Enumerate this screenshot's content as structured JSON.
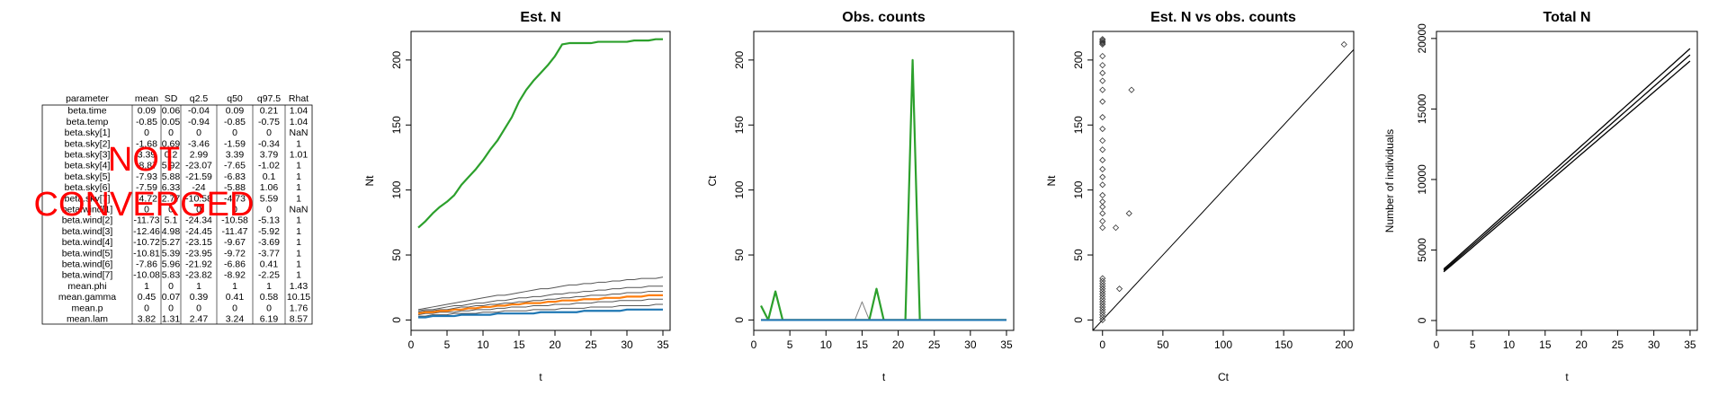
{
  "summary_table": {
    "columns": [
      "parameter",
      "mean",
      "SD",
      "q2.5",
      "q50",
      "q97.5",
      "Rhat"
    ],
    "rows": [
      [
        "beta.time",
        "0.09",
        "0.06",
        "-0.04",
        "0.09",
        "0.21",
        "1.04"
      ],
      [
        "beta.temp",
        "-0.85",
        "0.05",
        "-0.94",
        "-0.85",
        "-0.75",
        "1.04"
      ],
      [
        "beta.sky[1]",
        "0",
        "0",
        "0",
        "0",
        "0",
        "NaN"
      ],
      [
        "beta.sky[2]",
        "-1.68",
        "0.69",
        "-3.46",
        "-1.59",
        "-0.34",
        "1"
      ],
      [
        "beta.sky[3]",
        "3.39",
        "0.2",
        "2.99",
        "3.39",
        "3.79",
        "1.01"
      ],
      [
        "beta.sky[4]",
        "-8.87",
        "5.92",
        "-23.07",
        "-7.65",
        "-1.02",
        "1"
      ],
      [
        "beta.sky[5]",
        "-7.93",
        "5.88",
        "-21.59",
        "-6.83",
        "0.1",
        "1"
      ],
      [
        "beta.sky[6]",
        "-7.59",
        "6.33",
        "-24",
        "-5.88",
        "1.06",
        "1"
      ],
      [
        "beta.sky[7]",
        "-4.72",
        "2.77",
        "-10.58",
        "-4.73",
        "5.59",
        "1"
      ],
      [
        "beta.wind[1]",
        "0",
        "0",
        "0",
        "0",
        "0",
        "NaN"
      ],
      [
        "beta.wind[2]",
        "-11.73",
        "5.1",
        "-24.34",
        "-10.58",
        "-5.13",
        "1"
      ],
      [
        "beta.wind[3]",
        "-12.46",
        "4.98",
        "-24.45",
        "-11.47",
        "-5.92",
        "1"
      ],
      [
        "beta.wind[4]",
        "-10.72",
        "5.27",
        "-23.15",
        "-9.67",
        "-3.69",
        "1"
      ],
      [
        "beta.wind[5]",
        "-10.81",
        "5.39",
        "-23.95",
        "-9.72",
        "-3.77",
        "1"
      ],
      [
        "beta.wind[6]",
        "-7.86",
        "5.96",
        "-21.92",
        "-6.86",
        "0.41",
        "1"
      ],
      [
        "beta.wind[7]",
        "-10.08",
        "5.83",
        "-23.82",
        "-8.92",
        "-2.25",
        "1"
      ],
      [
        "mean.phi",
        "1",
        "0",
        "1",
        "1",
        "1",
        "1.43"
      ],
      [
        "mean.gamma",
        "0.45",
        "0.07",
        "0.39",
        "0.41",
        "0.58",
        "10.15"
      ],
      [
        "mean.p",
        "0",
        "0",
        "0",
        "0",
        "0",
        "1.76"
      ],
      [
        "mean.lam",
        "3.82",
        "1.31",
        "2.47",
        "3.24",
        "6.19",
        "8.57"
      ]
    ],
    "overlay": {
      "lines": [
        "NOT",
        "CONVERGED"
      ],
      "color": "#ff0000"
    }
  },
  "chart_data": [
    {
      "type": "line",
      "title": "Est. N",
      "xlabel": "t",
      "ylabel": "Nt",
      "xlim": [
        0,
        36
      ],
      "ylim": [
        -8,
        222
      ],
      "xticks": [
        0,
        5,
        10,
        15,
        20,
        25,
        30,
        35
      ],
      "yticks": [
        0,
        50,
        100,
        150,
        200
      ],
      "x": [
        1,
        2,
        3,
        4,
        5,
        6,
        7,
        8,
        9,
        10,
        11,
        12,
        13,
        14,
        15,
        16,
        17,
        18,
        19,
        20,
        21,
        22,
        23,
        24,
        25,
        26,
        27,
        28,
        29,
        30,
        31,
        32,
        33,
        34,
        35
      ],
      "series": [
        {
          "color": "#2ca02c",
          "values": [
            71,
            76,
            82,
            87,
            91,
            96,
            104,
            110,
            116,
            123,
            131,
            138,
            147,
            156,
            168,
            177,
            184,
            190,
            196,
            203,
            212,
            213,
            213,
            213,
            213,
            214,
            214,
            214,
            214,
            214,
            215,
            215,
            215,
            216,
            216
          ]
        },
        {
          "color": "#ff7f0e",
          "values": [
            5,
            6,
            6,
            7,
            7,
            8,
            8,
            9,
            9,
            10,
            10,
            11,
            11,
            12,
            12,
            13,
            13,
            13,
            14,
            14,
            15,
            15,
            15,
            16,
            16,
            16,
            17,
            17,
            17,
            18,
            18,
            18,
            19,
            19,
            19
          ]
        },
        {
          "color": "#1f77b4",
          "values": [
            2,
            2,
            3,
            3,
            3,
            3,
            4,
            4,
            4,
            4,
            4,
            5,
            5,
            5,
            5,
            5,
            5,
            6,
            6,
            6,
            6,
            6,
            6,
            7,
            7,
            7,
            7,
            7,
            7,
            8,
            8,
            8,
            8,
            8,
            8
          ]
        },
        {
          "color": "#555555",
          "values": [
            8,
            9,
            10,
            11,
            12,
            13,
            14,
            15,
            16,
            17,
            18,
            19,
            19,
            20,
            21,
            22,
            23,
            24,
            24,
            25,
            26,
            27,
            27,
            28,
            28,
            29,
            29,
            30,
            30,
            31,
            31,
            32,
            32,
            32,
            33
          ]
        },
        {
          "color": "#555555",
          "values": [
            7,
            8,
            8,
            9,
            10,
            11,
            11,
            12,
            13,
            13,
            14,
            15,
            15,
            16,
            17,
            17,
            18,
            18,
            19,
            20,
            20,
            21,
            21,
            22,
            22,
            23,
            23,
            24,
            24,
            25,
            25,
            25,
            26,
            26,
            26
          ]
        },
        {
          "color": "#555555",
          "values": [
            6,
            7,
            7,
            8,
            8,
            9,
            10,
            10,
            11,
            11,
            12,
            12,
            13,
            13,
            14,
            14,
            15,
            15,
            16,
            16,
            17,
            17,
            18,
            18,
            19,
            19,
            19,
            20,
            20,
            21,
            21,
            21,
            22,
            22,
            22
          ]
        },
        {
          "color": "#555555",
          "values": [
            4,
            5,
            5,
            6,
            6,
            6,
            7,
            7,
            8,
            8,
            8,
            9,
            9,
            10,
            10,
            10,
            11,
            11,
            11,
            12,
            12,
            12,
            13,
            13,
            13,
            14,
            14,
            14,
            15,
            15,
            15,
            15,
            16,
            16,
            16
          ]
        },
        {
          "color": "#555555",
          "values": [
            3,
            3,
            4,
            4,
            4,
            5,
            5,
            5,
            5,
            6,
            6,
            6,
            7,
            7,
            7,
            7,
            8,
            8,
            8,
            8,
            9,
            9,
            9,
            9,
            10,
            10,
            10,
            10,
            11,
            11,
            11,
            11,
            11,
            12,
            12
          ]
        }
      ]
    },
    {
      "type": "line",
      "title": "Obs. counts",
      "xlabel": "t",
      "ylabel": "Ct",
      "xlim": [
        0,
        36
      ],
      "ylim": [
        -8,
        222
      ],
      "xticks": [
        0,
        5,
        10,
        15,
        20,
        25,
        30,
        35
      ],
      "yticks": [
        0,
        50,
        100,
        150,
        200
      ],
      "x": [
        1,
        2,
        3,
        4,
        5,
        6,
        7,
        8,
        9,
        10,
        11,
        12,
        13,
        14,
        15,
        16,
        17,
        18,
        19,
        20,
        21,
        22,
        23,
        24,
        25,
        26,
        27,
        28,
        29,
        30,
        31,
        32,
        33,
        34,
        35
      ],
      "series": [
        {
          "color": "#808080",
          "values": [
            0,
            0,
            0,
            0,
            0,
            0,
            0,
            0,
            0,
            0,
            0,
            0,
            0,
            0,
            14,
            0,
            0,
            0,
            0,
            0,
            0,
            0,
            0,
            0,
            0,
            0,
            0,
            0,
            0,
            0,
            0,
            0,
            0,
            0,
            0
          ]
        },
        {
          "color": "#2ca02c",
          "values": [
            11,
            0,
            22,
            0,
            0,
            0,
            0,
            0,
            0,
            0,
            0,
            0,
            0,
            0,
            0,
            0,
            24,
            0,
            0,
            0,
            0,
            200,
            0,
            0,
            0,
            0,
            0,
            0,
            0,
            0,
            0,
            0,
            0,
            0,
            0
          ]
        },
        {
          "color": "#ff7f0e",
          "values": [
            0,
            0,
            0,
            0,
            0,
            0,
            0,
            0,
            0,
            0,
            0,
            0,
            0,
            0,
            0,
            0,
            0,
            0,
            0,
            0,
            0,
            0,
            0,
            0,
            0,
            0,
            0,
            0,
            0,
            0,
            0,
            0,
            0,
            0,
            0
          ]
        },
        {
          "color": "#1f77b4",
          "values": [
            0,
            0,
            0,
            0,
            0,
            0,
            0,
            0,
            0,
            0,
            0,
            0,
            0,
            0,
            0,
            0,
            0,
            0,
            0,
            0,
            0,
            0,
            0,
            0,
            0,
            0,
            0,
            0,
            0,
            0,
            0,
            0,
            0,
            0,
            0
          ]
        }
      ]
    },
    {
      "type": "scatter",
      "title": "Est. N vs obs. counts",
      "xlabel": "Ct",
      "ylabel": "Nt",
      "xlim": [
        -8,
        208
      ],
      "ylim": [
        -8,
        222
      ],
      "xticks": [
        0,
        50,
        100,
        150,
        200
      ],
      "yticks": [
        0,
        50,
        100,
        150,
        200
      ],
      "reference_line": "y = x",
      "points": [
        [
          0,
          71
        ],
        [
          0,
          76
        ],
        [
          0,
          82
        ],
        [
          0,
          87
        ],
        [
          0,
          91
        ],
        [
          0,
          96
        ],
        [
          0,
          104
        ],
        [
          0,
          110
        ],
        [
          0,
          116
        ],
        [
          0,
          123
        ],
        [
          0,
          131
        ],
        [
          0,
          138
        ],
        [
          0,
          147
        ],
        [
          0,
          156
        ],
        [
          0,
          168
        ],
        [
          0,
          177
        ],
        [
          0,
          184
        ],
        [
          0,
          190
        ],
        [
          0,
          196
        ],
        [
          0,
          203
        ],
        [
          0,
          212
        ],
        [
          0,
          213
        ],
        [
          0,
          213
        ],
        [
          0,
          214
        ],
        [
          0,
          215
        ],
        [
          0,
          216
        ],
        [
          0,
          0
        ],
        [
          0,
          2
        ],
        [
          0,
          4
        ],
        [
          0,
          6
        ],
        [
          0,
          8
        ],
        [
          0,
          10
        ],
        [
          0,
          12
        ],
        [
          0,
          14
        ],
        [
          0,
          16
        ],
        [
          0,
          18
        ],
        [
          0,
          20
        ],
        [
          0,
          22
        ],
        [
          0,
          24
        ],
        [
          0,
          26
        ],
        [
          0,
          28
        ],
        [
          0,
          30
        ],
        [
          0,
          32
        ],
        [
          11,
          71
        ],
        [
          22,
          82
        ],
        [
          14,
          24
        ],
        [
          24,
          177
        ],
        [
          200,
          212
        ]
      ]
    },
    {
      "type": "line",
      "title": "Total N",
      "xlabel": "t",
      "ylabel": "Number of individuals",
      "xlim": [
        0,
        36
      ],
      "ylim": [
        -700,
        20500
      ],
      "xticks": [
        0,
        5,
        10,
        15,
        20,
        25,
        30,
        35
      ],
      "yticks": [
        0,
        5000,
        10000,
        15000,
        20000
      ],
      "x": [
        1,
        2,
        3,
        4,
        5,
        6,
        7,
        8,
        9,
        10,
        11,
        12,
        13,
        14,
        15,
        16,
        17,
        18,
        19,
        20,
        21,
        22,
        23,
        24,
        25,
        26,
        27,
        28,
        29,
        30,
        31,
        32,
        33,
        34,
        35
      ],
      "series": [
        {
          "color": "#000000",
          "values": [
            3650,
            4100,
            4560,
            5020,
            5480,
            5940,
            6400,
            6860,
            7320,
            7780,
            8240,
            8700,
            9160,
            9620,
            10080,
            10540,
            11000,
            11460,
            11920,
            12380,
            12840,
            13300,
            13760,
            14220,
            14680,
            15140,
            15600,
            16060,
            16520,
            16980,
            17440,
            17900,
            18360,
            18820,
            19280
          ]
        },
        {
          "color": "#000000",
          "values": [
            3550,
            3990,
            4440,
            4890,
            5340,
            5790,
            6240,
            6690,
            7140,
            7590,
            8040,
            8490,
            8940,
            9390,
            9840,
            10290,
            10740,
            11190,
            11640,
            12090,
            12540,
            12990,
            13440,
            13890,
            14340,
            14790,
            15240,
            15690,
            16140,
            16590,
            17040,
            17490,
            17940,
            18390,
            18840
          ]
        },
        {
          "color": "#000000",
          "values": [
            3450,
            3880,
            4320,
            4760,
            5200,
            5640,
            6080,
            6520,
            6960,
            7400,
            7840,
            8280,
            8720,
            9160,
            9600,
            10040,
            10480,
            10920,
            11360,
            11800,
            12240,
            12680,
            13120,
            13560,
            14000,
            14440,
            14880,
            15320,
            15760,
            16200,
            16640,
            17080,
            17520,
            17960,
            18400
          ]
        }
      ]
    }
  ]
}
